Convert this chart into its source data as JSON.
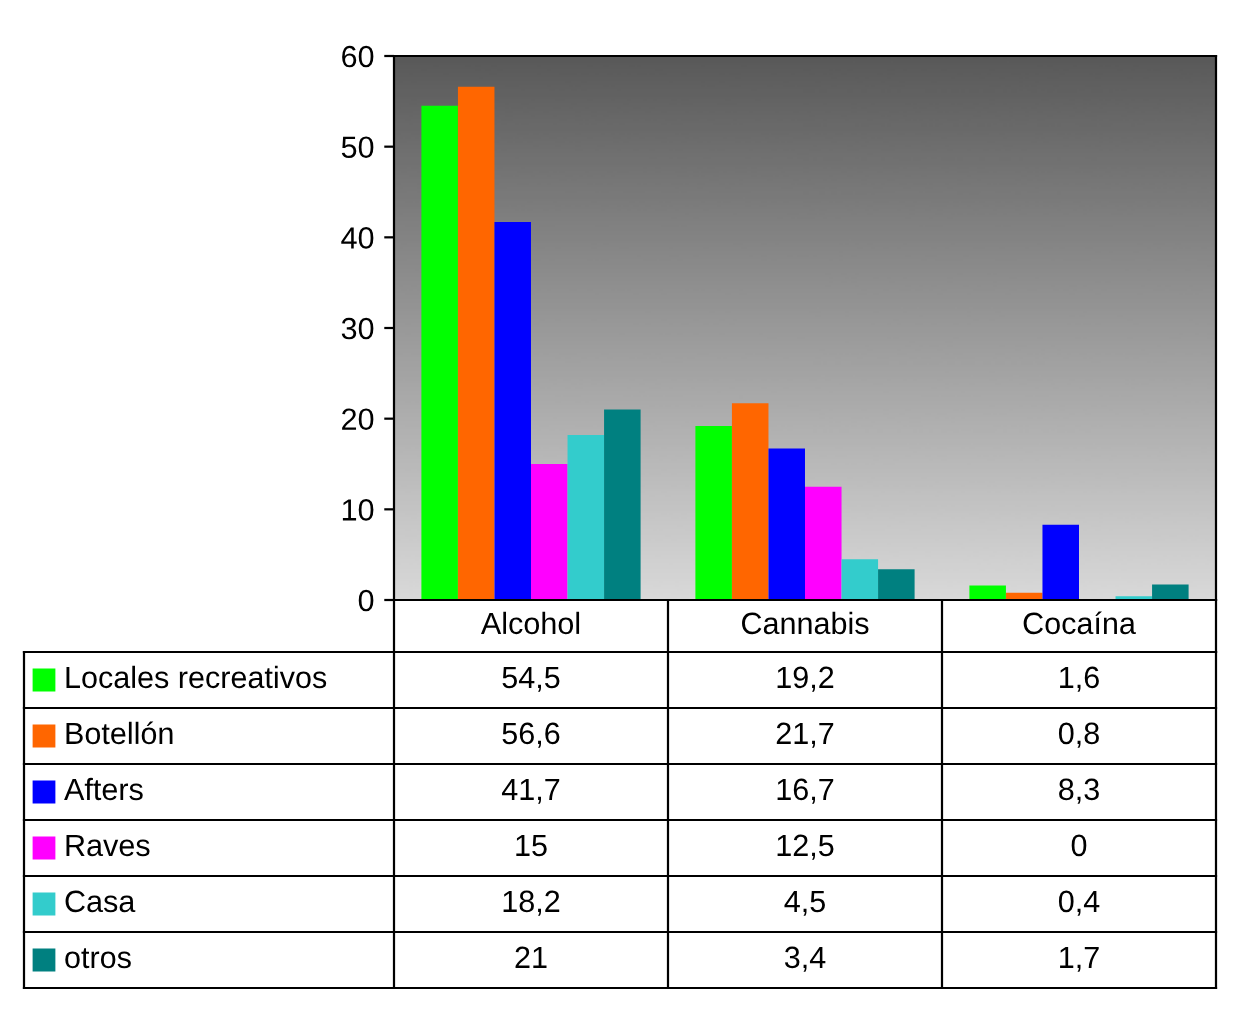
{
  "chart_data": {
    "type": "bar",
    "categories": [
      "Alcohol",
      "Cannabis",
      "Cocaína"
    ],
    "ylim": [
      0,
      60
    ],
    "yticks": [
      0,
      10,
      20,
      30,
      40,
      50,
      60
    ],
    "grid": false,
    "legend": "bottom left",
    "series": [
      {
        "name": "Locales recreativos",
        "color": "#00ff00",
        "values": [
          54.5,
          19.2,
          1.6
        ],
        "value_labels": [
          "54,5",
          "19,2",
          "1,6"
        ]
      },
      {
        "name": "Botellón",
        "color": "#ff6600",
        "values": [
          56.6,
          21.7,
          0.8
        ],
        "value_labels": [
          "56,6",
          "21,7",
          "0,8"
        ]
      },
      {
        "name": "Afters",
        "color": "#0000ff",
        "values": [
          41.7,
          16.7,
          8.3
        ],
        "value_labels": [
          "41,7",
          "16,7",
          "8,3"
        ]
      },
      {
        "name": "Raves",
        "color": "#ff00ff",
        "values": [
          15,
          12.5,
          0
        ],
        "value_labels": [
          "15",
          "12,5",
          "0"
        ]
      },
      {
        "name": "Casa",
        "color": "#33cccc",
        "values": [
          18.2,
          4.5,
          0.4
        ],
        "value_labels": [
          "18,2",
          "4,5",
          "0,4"
        ]
      },
      {
        "name": "otros",
        "color": "#008080",
        "values": [
          21,
          3.4,
          1.7
        ],
        "value_labels": [
          "21",
          "3,4",
          "1,7"
        ]
      }
    ]
  }
}
